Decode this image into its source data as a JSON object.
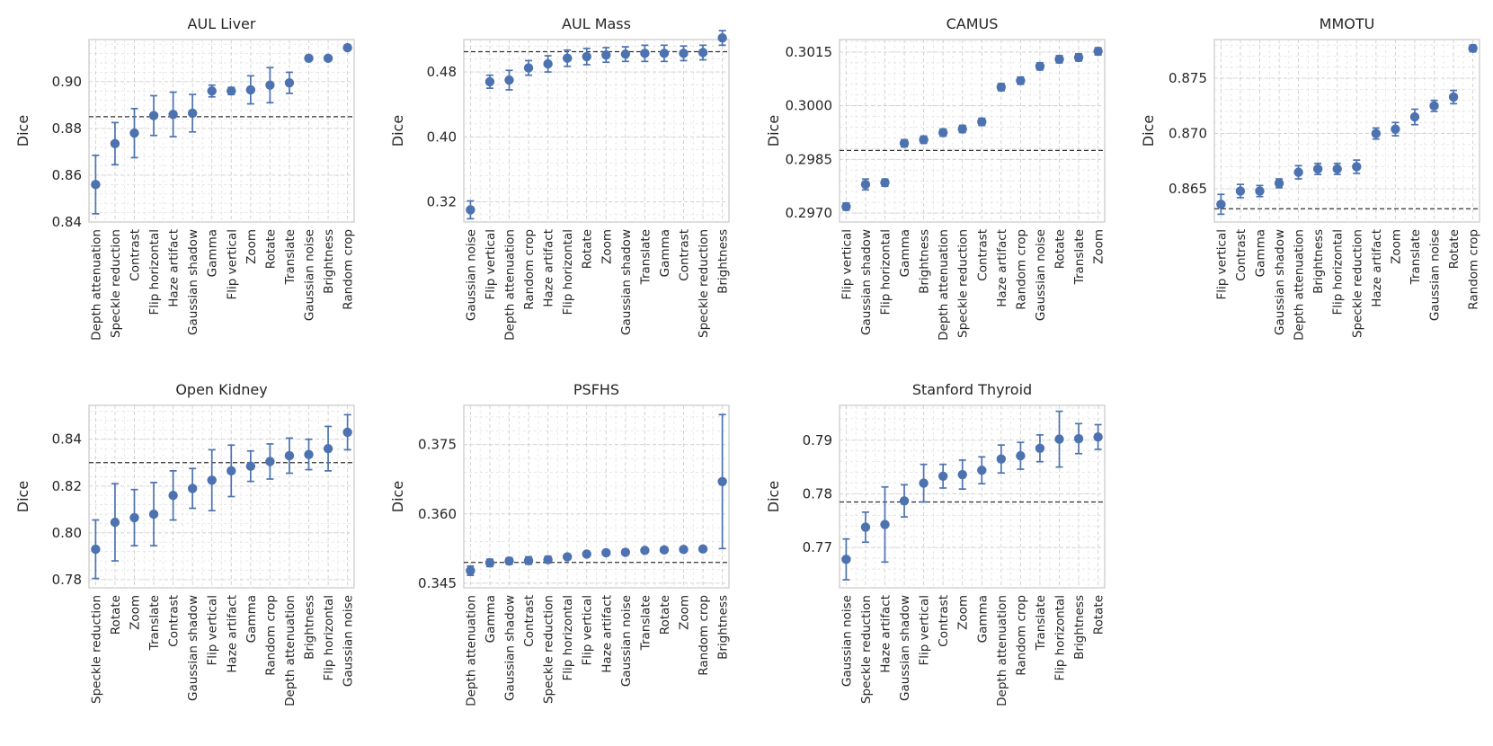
{
  "chart_data": [
    {
      "type": "scatter",
      "title": "AUL Liver",
      "ylabel": "Dice",
      "ylim": [
        0.84,
        0.918
      ],
      "yticks": [
        0.84,
        0.86,
        0.88,
        0.9
      ],
      "ytick_labels": [
        "0.84",
        "0.86",
        "0.88",
        "0.90"
      ],
      "baseline": 0.885,
      "categories": [
        "Depth attenuation",
        "Speckle reduction",
        "Contrast",
        "Flip horizontal",
        "Haze artifact",
        "Gaussian shadow",
        "Gamma",
        "Flip vertical",
        "Zoom",
        "Rotate",
        "Translate",
        "Gaussian noise",
        "Brightness",
        "Random crop"
      ],
      "values": [
        0.856,
        0.8735,
        0.878,
        0.8855,
        0.886,
        0.8865,
        0.896,
        0.896,
        0.8965,
        0.8985,
        0.8995,
        0.91,
        0.91,
        0.9145
      ],
      "errors": [
        0.0125,
        0.009,
        0.0105,
        0.0085,
        0.0095,
        0.008,
        0.0025,
        0.0015,
        0.006,
        0.0075,
        0.0045,
        0.0005,
        0.0005,
        0.0005
      ]
    },
    {
      "type": "scatter",
      "title": "AUL Mass",
      "ylabel": "Dice",
      "ylim": [
        0.295,
        0.52
      ],
      "yticks": [
        0.32,
        0.4,
        0.48
      ],
      "ytick_labels": [
        "0.32",
        "0.40",
        "0.48"
      ],
      "baseline": 0.505,
      "categories": [
        "Gaussian noise",
        "Flip vertical",
        "Depth attenuation",
        "Random crop",
        "Haze artifact",
        "Flip horizontal",
        "Rotate",
        "Zoom",
        "Gaussian shadow",
        "Translate",
        "Gamma",
        "Contrast",
        "Speckle reduction",
        "Brightness"
      ],
      "values": [
        0.31,
        0.468,
        0.47,
        0.485,
        0.49,
        0.497,
        0.499,
        0.501,
        0.502,
        0.503,
        0.503,
        0.503,
        0.504,
        0.522
      ],
      "errors": [
        0.011,
        0.008,
        0.012,
        0.009,
        0.01,
        0.01,
        0.01,
        0.009,
        0.009,
        0.01,
        0.01,
        0.009,
        0.009,
        0.009
      ]
    },
    {
      "type": "scatter",
      "title": "CAMUS",
      "ylabel": "Dice",
      "ylim": [
        0.29675,
        0.30185
      ],
      "yticks": [
        0.297,
        0.2985,
        0.3,
        0.3015
      ],
      "ytick_labels": [
        "0.2970",
        "0.2985",
        "0.3000",
        "0.3015"
      ],
      "baseline": 0.29875,
      "categories": [
        "Flip vertical",
        "Gaussian shadow",
        "Flip horizontal",
        "Gamma",
        "Brightness",
        "Depth attenuation",
        "Speckle reduction",
        "Contrast",
        "Haze artifact",
        "Random crop",
        "Gaussian noise",
        "Rotate",
        "Translate",
        "Zoom"
      ],
      "values": [
        0.29718,
        0.2978,
        0.29785,
        0.29895,
        0.29905,
        0.29925,
        0.29935,
        0.29955,
        0.30052,
        0.3007,
        0.3011,
        0.3013,
        0.30135,
        0.30152
      ],
      "errors": [
        0.0001,
        0.00015,
        0.0001,
        0.0001,
        0.0001,
        0.0001,
        0.0001,
        0.0001,
        0.0001,
        0.0001,
        0.0001,
        0.0001,
        0.0001,
        0.0001
      ]
    },
    {
      "type": "scatter",
      "title": "MMOTU",
      "ylabel": "Dice",
      "ylim": [
        0.862,
        0.8785
      ],
      "yticks": [
        0.865,
        0.87,
        0.875
      ],
      "ytick_labels": [
        "0.865",
        "0.870",
        "0.875"
      ],
      "baseline": 0.8632,
      "categories": [
        "Flip vertical",
        "Contrast",
        "Gamma",
        "Gaussian shadow",
        "Depth attenuation",
        "Brightness",
        "Flip horizontal",
        "Speckle reduction",
        "Haze artifact",
        "Zoom",
        "Translate",
        "Gaussian noise",
        "Rotate",
        "Random crop"
      ],
      "values": [
        0.8636,
        0.8648,
        0.8648,
        0.8655,
        0.8665,
        0.8668,
        0.8668,
        0.867,
        0.87,
        0.8704,
        0.8715,
        0.8725,
        0.8733,
        0.8777
      ],
      "errors": [
        0.0009,
        0.0006,
        0.0005,
        0.0004,
        0.0006,
        0.0005,
        0.0005,
        0.0006,
        0.0005,
        0.0006,
        0.0007,
        0.0005,
        0.0006,
        0.0003
      ]
    },
    {
      "type": "scatter",
      "title": "Open Kidney",
      "ylabel": "Dice",
      "ylim": [
        0.7765,
        0.8545
      ],
      "yticks": [
        0.78,
        0.8,
        0.82,
        0.84
      ],
      "ytick_labels": [
        "0.78",
        "0.80",
        "0.82",
        "0.84"
      ],
      "baseline": 0.83,
      "categories": [
        "Speckle reduction",
        "Rotate",
        "Zoom",
        "Translate",
        "Contrast",
        "Gaussian shadow",
        "Flip vertical",
        "Haze artifact",
        "Gamma",
        "Random crop",
        "Depth attenuation",
        "Brightness",
        "Flip horizontal",
        "Gaussian noise"
      ],
      "values": [
        0.793,
        0.8045,
        0.8065,
        0.808,
        0.816,
        0.819,
        0.8225,
        0.8265,
        0.8285,
        0.8305,
        0.833,
        0.8335,
        0.836,
        0.843
      ],
      "errors": [
        0.0125,
        0.0165,
        0.012,
        0.0135,
        0.0105,
        0.0085,
        0.013,
        0.011,
        0.0065,
        0.0075,
        0.0075,
        0.0065,
        0.0095,
        0.0075
      ]
    },
    {
      "type": "scatter",
      "title": "PSFHS",
      "ylabel": "Dice",
      "ylim": [
        0.344,
        0.3835
      ],
      "yticks": [
        0.345,
        0.36,
        0.375
      ],
      "ytick_labels": [
        "0.345",
        "0.360",
        "0.375"
      ],
      "baseline": 0.3495,
      "categories": [
        "Depth attenuation",
        "Gamma",
        "Gaussian shadow",
        "Contrast",
        "Speckle reduction",
        "Flip horizontal",
        "Flip vertical",
        "Haze artifact",
        "Gaussian noise",
        "Translate",
        "Rotate",
        "Zoom",
        "Random crop",
        "Brightness"
      ],
      "values": [
        0.3477,
        0.3494,
        0.3498,
        0.3499,
        0.3501,
        0.3507,
        0.3513,
        0.3516,
        0.3517,
        0.3521,
        0.3522,
        0.3523,
        0.3524,
        0.367
      ],
      "errors": [
        0.001,
        0.0008,
        0.0007,
        0.0008,
        0.0007,
        0.0004,
        0.0003,
        0.0003,
        0.0002,
        0.0002,
        0.0002,
        0.0002,
        0.0002,
        0.0145
      ]
    },
    {
      "type": "scatter",
      "title": "Stanford Thyroid",
      "ylabel": "Dice",
      "ylim": [
        0.7625,
        0.7965
      ],
      "yticks": [
        0.77,
        0.78,
        0.79
      ],
      "ytick_labels": [
        "0.77",
        "0.78",
        "0.79"
      ],
      "baseline": 0.7785,
      "categories": [
        "Gaussian noise",
        "Speckle reduction",
        "Haze artifact",
        "Gaussian shadow",
        "Flip vertical",
        "Contrast",
        "Zoom",
        "Gamma",
        "Depth attenuation",
        "Random crop",
        "Translate",
        "Flip horizontal",
        "Brightness",
        "Rotate"
      ],
      "values": [
        0.7678,
        0.7738,
        0.7743,
        0.7787,
        0.782,
        0.7833,
        0.7836,
        0.7844,
        0.7865,
        0.7871,
        0.7885,
        0.7902,
        0.7903,
        0.7906
      ],
      "errors": [
        0.0038,
        0.0028,
        0.007,
        0.003,
        0.0035,
        0.0022,
        0.0027,
        0.0025,
        0.0026,
        0.0025,
        0.0025,
        0.0052,
        0.0028,
        0.0023
      ]
    }
  ]
}
